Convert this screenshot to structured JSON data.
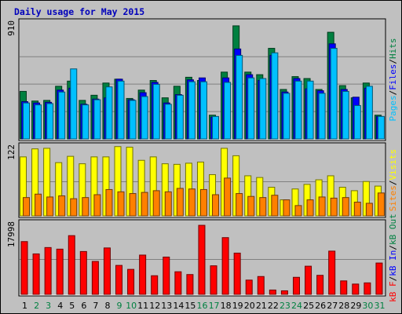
{
  "title": "Daily usage for May 2015",
  "colors": {
    "background": "#c0c0c0",
    "title": "#0000bb",
    "hits": "#008040",
    "files": "#0000ff",
    "pages": "#00c0ff",
    "visits": "#ffff00",
    "sites": "#ff8000",
    "kbin": "#ff0000",
    "kbout": "#0080ff",
    "weekend_day": "#008040"
  },
  "chart_data": [
    {
      "type": "bar",
      "name": "hits-files-pages",
      "categories": [
        "1",
        "2",
        "3",
        "4",
        "5",
        "6",
        "7",
        "8",
        "9",
        "10",
        "11",
        "12",
        "13",
        "14",
        "15",
        "16",
        "17",
        "18",
        "19",
        "20",
        "21",
        "22",
        "23",
        "24",
        "25",
        "26",
        "27",
        "28",
        "29",
        "30",
        "31"
      ],
      "ymax_label": "910",
      "ylim": [
        0,
        910
      ],
      "legend": {
        "hits": "Hits",
        "files": "Files",
        "pages": "Pages",
        "sep": "/"
      },
      "series": [
        {
          "name": "Hits",
          "values": [
            370,
            295,
            300,
            410,
            450,
            300,
            340,
            435,
            465,
            315,
            380,
            455,
            320,
            410,
            480,
            455,
            185,
            520,
            880,
            520,
            500,
            705,
            385,
            485,
            470,
            385,
            830,
            415,
            320,
            435,
            185
          ]
        },
        {
          "name": "Files",
          "values": [
            290,
            280,
            285,
            380,
            395,
            270,
            310,
            320,
            465,
            305,
            360,
            440,
            280,
            345,
            460,
            475,
            170,
            475,
            700,
            500,
            455,
            650,
            365,
            470,
            390,
            375,
            740,
            385,
            325,
            395,
            175
          ]
        },
        {
          "name": "Pages",
          "values": [
            280,
            265,
            275,
            365,
            545,
            265,
            305,
            405,
            450,
            300,
            330,
            425,
            270,
            340,
            445,
            445,
            175,
            440,
            650,
            475,
            470,
            670,
            355,
            450,
            450,
            355,
            705,
            370,
            260,
            410,
            175
          ]
        }
      ]
    },
    {
      "type": "bar",
      "name": "visits-sites",
      "categories": [
        "1",
        "2",
        "3",
        "4",
        "5",
        "6",
        "7",
        "8",
        "9",
        "10",
        "11",
        "12",
        "13",
        "14",
        "15",
        "16",
        "17",
        "18",
        "19",
        "20",
        "21",
        "22",
        "23",
        "24",
        "25",
        "26",
        "27",
        "28",
        "29",
        "30",
        "31"
      ],
      "ymax_label": "122",
      "ylim": [
        0,
        122
      ],
      "legend": {
        "visits": "Visits",
        "sites": "Sites",
        "sep": "/"
      },
      "series": [
        {
          "name": "Visits",
          "values": [
            103,
            117,
            118,
            93,
            104,
            91,
            103,
            103,
            121,
            120,
            97,
            103,
            91,
            90,
            92,
            94,
            72,
            118,
            105,
            70,
            67,
            50,
            28,
            47,
            55,
            63,
            70,
            50,
            44,
            60,
            52
          ]
        },
        {
          "name": "Sites",
          "values": [
            32,
            38,
            33,
            35,
            30,
            32,
            37,
            46,
            42,
            39,
            41,
            44,
            42,
            48,
            47,
            46,
            37,
            66,
            39,
            34,
            32,
            36,
            28,
            18,
            28,
            33,
            31,
            32,
            24,
            22,
            40
          ]
        }
      ]
    },
    {
      "type": "bar",
      "name": "kb-in-out",
      "categories": [
        "1",
        "2",
        "3",
        "4",
        "5",
        "6",
        "7",
        "8",
        "9",
        "10",
        "11",
        "12",
        "13",
        "14",
        "15",
        "16",
        "17",
        "18",
        "19",
        "20",
        "21",
        "22",
        "23",
        "24",
        "25",
        "26",
        "27",
        "28",
        "29",
        "30",
        "31"
      ],
      "ymax_label": "17998",
      "ylim": [
        0,
        17998
      ],
      "legend": {
        "kbf": "kB F",
        "kbin": "kB In",
        "kbout": "kB Out",
        "sep": "/"
      },
      "series": [
        {
          "name": "kB F",
          "values": [
            13300,
            10200,
            11800,
            11400,
            14800,
            10800,
            8300,
            11700,
            7300,
            6300,
            9900,
            4700,
            9400,
            5700,
            5000,
            17400,
            7200,
            14300,
            10400,
            3600,
            4500,
            1100,
            900,
            4300,
            7100,
            4800,
            10900,
            3400,
            2600,
            2900,
            7900
          ]
        }
      ]
    }
  ],
  "weekend_days": [
    2,
    3,
    9,
    10,
    16,
    17,
    23,
    24,
    30,
    31
  ]
}
